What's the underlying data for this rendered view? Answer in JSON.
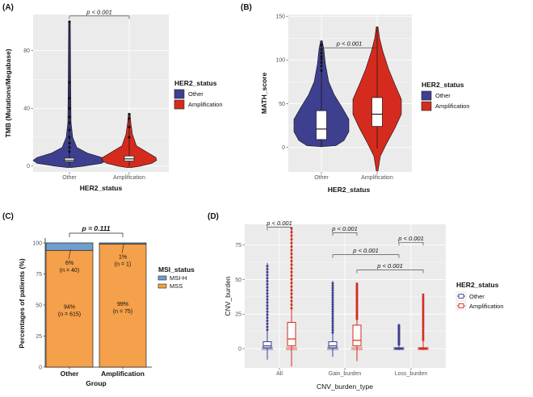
{
  "colors": {
    "other": "#3F3F8F",
    "amplification": "#D52B1E",
    "msi_h": "#6E9FCF",
    "mss": "#F5A04A",
    "panel_bg": "#EBEBEB"
  },
  "chart_data": [
    {
      "panel": "(A)",
      "type": "violin",
      "xlabel": "HER2_status",
      "ylabel": "TMB (Mutations/Megabase)",
      "categories": [
        "Other",
        "Amplification"
      ],
      "ylim": [
        -4,
        105
      ],
      "yticks": [
        "0",
        "40",
        "80"
      ],
      "ytick_values": [
        0,
        40,
        80
      ],
      "series": [
        {
          "category": "Other",
          "min": 0,
          "q1": 3,
          "median": 4,
          "q3": 5.5,
          "max": 100,
          "outliers": [
            10,
            13,
            16,
            20,
            25,
            30,
            34,
            40,
            47,
            58,
            100
          ]
        },
        {
          "category": "Amplification",
          "min": 0,
          "q1": 3.5,
          "median": 5,
          "q3": 7,
          "max": 36,
          "outliers": [
            20,
            27,
            33,
            36
          ]
        }
      ],
      "annotations": [
        {
          "text": "p < 0.001",
          "between": [
            "Other",
            "Amplification"
          ],
          "y": 104
        }
      ],
      "legend": {
        "title": "HER2_status",
        "items": [
          "Other",
          "Amplification"
        ],
        "position": "right"
      }
    },
    {
      "panel": "(B)",
      "type": "violin",
      "xlabel": "HER2_status",
      "ylabel": "MATH_score",
      "categories": [
        "Other",
        "Amplification"
      ],
      "ylim": [
        -28,
        152
      ],
      "yticks": [
        "0",
        "50",
        "100",
        "150"
      ],
      "ytick_values": [
        0,
        50,
        100,
        150
      ],
      "series": [
        {
          "category": "Other",
          "min": 0,
          "q1": 9,
          "median": 21,
          "q3": 42,
          "max": 122,
          "outliers": [
            88,
            93,
            97,
            101,
            104,
            108,
            112,
            117
          ]
        },
        {
          "category": "Amplification",
          "min": -1,
          "q1": 24,
          "median": 38,
          "q3": 57,
          "max": 138,
          "outliers": []
        }
      ],
      "annotations": [
        {
          "text": "p < 0.001",
          "between": [
            "Other",
            "Amplification"
          ],
          "y": 114
        }
      ],
      "legend": {
        "title": "HER2_status",
        "items": [
          "Other",
          "Amplification"
        ],
        "position": "right"
      }
    },
    {
      "panel": "(C)",
      "type": "bar",
      "stacked": true,
      "xlabel": "Group",
      "ylabel": "Percentages of patients (%)",
      "categories": [
        "Other",
        "Amplification"
      ],
      "ylim": [
        0,
        100
      ],
      "yticks": [
        "0",
        "25",
        "50",
        "75",
        "100"
      ],
      "ytick_values": [
        0,
        25,
        50,
        75,
        100
      ],
      "series": [
        {
          "name": "MSS",
          "values": [
            94,
            99
          ],
          "labels": [
            [
              "94%",
              "(n = 615)"
            ],
            [
              "99%",
              "(n = 75)"
            ]
          ]
        },
        {
          "name": "MSI-H",
          "values": [
            6,
            1
          ],
          "labels": [
            [
              "6%",
              "(n = 40)"
            ],
            [
              "1%",
              "(n = 1)"
            ]
          ]
        }
      ],
      "annotations": [
        {
          "text": "p = 0.111"
        }
      ],
      "legend": {
        "title": "MSI_status",
        "items": [
          "MSI-H",
          "MSS"
        ],
        "position": "right"
      }
    },
    {
      "panel": "(D)",
      "type": "boxplot",
      "xlabel": "CNV_burden_type",
      "ylabel": "CNV_burden",
      "categories": [
        "All",
        "Gain_burden",
        "Loss_burden"
      ],
      "ylim": [
        -14,
        90
      ],
      "yticks": [
        "0",
        "25",
        "50",
        "75"
      ],
      "ytick_values": [
        0,
        25,
        50,
        75
      ],
      "series": [
        {
          "name": "Other",
          "boxes": [
            {
              "min": -8,
              "q1": 0.5,
              "median": 2,
              "q3": 5,
              "max": 62
            },
            {
              "min": -6,
              "q1": 0.5,
              "median": 2,
              "q3": 5,
              "max": 49
            },
            {
              "min": -1,
              "q1": 0,
              "median": 0,
              "q3": 0.5,
              "max": 17
            }
          ]
        },
        {
          "name": "Amplification",
          "boxes": [
            {
              "min": -13,
              "q1": 2,
              "median": 7,
              "q3": 19,
              "max": 87
            },
            {
              "min": -9,
              "q1": 2,
              "median": 6,
              "q3": 17,
              "max": 47
            },
            {
              "min": -1,
              "q1": 0,
              "median": 0,
              "q3": 0.5,
              "max": 39
            }
          ]
        }
      ],
      "annotations": [
        {
          "text": "p < 0.001",
          "between": [
            "All/Other",
            "All/Amplification"
          ],
          "y": 88
        },
        {
          "text": "p < 0.001",
          "between": [
            "Gain_burden/Other",
            "Gain_burden/Amplification"
          ],
          "y": 84
        },
        {
          "text": "p < 0.001",
          "between": [
            "Loss_burden/Other",
            "Loss_burden/Amplification"
          ],
          "y": 77
        },
        {
          "text": "p < 0.001",
          "between": [
            "Gain_burden",
            "Loss_burden"
          ],
          "y": 68
        },
        {
          "text": "p < 0.001",
          "between": [
            "Gain_burden/Amplification",
            "Loss_burden/Amplification"
          ],
          "y": 57
        }
      ],
      "legend": {
        "title": "HER2_status",
        "items": [
          "Other",
          "Amplification"
        ],
        "position": "right"
      }
    }
  ]
}
